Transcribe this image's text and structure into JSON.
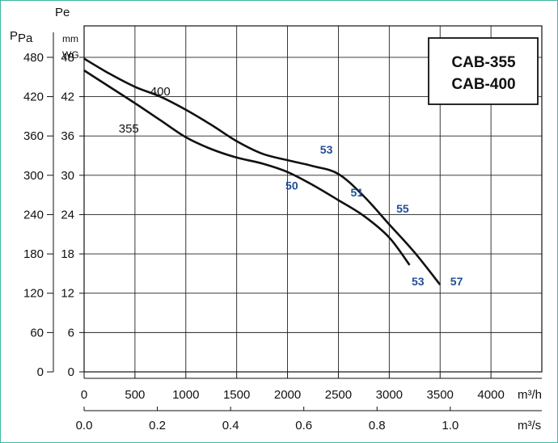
{
  "chart_data": {
    "type": "line",
    "y_axis_left": {
      "label": "Pa",
      "label_prefix": "P",
      "ticks": [
        0,
        60,
        120,
        180,
        240,
        300,
        360,
        420,
        480
      ],
      "range": [
        0,
        528
      ]
    },
    "y_axis_right": {
      "label": "Pe",
      "unit_line1": "mm",
      "unit_line2": "WG",
      "ticks": [
        0,
        6,
        12,
        18,
        24,
        30,
        36,
        42,
        48
      ]
    },
    "x_axis_primary": {
      "ticks": [
        0,
        500,
        1000,
        1500,
        2000,
        2500,
        3000,
        3500,
        4000
      ],
      "unit": "m³/h",
      "range": [
        0,
        4500
      ]
    },
    "x_axis_secondary": {
      "ticks": [
        "0.0",
        "0.2",
        "0.4",
        "0.6",
        "0.8",
        "1.0"
      ],
      "tick_values": [
        0,
        0.2,
        0.4,
        0.6,
        0.8,
        1.0
      ],
      "unit": "m³/s"
    },
    "legend": [
      "CAB-355",
      "CAB-400"
    ],
    "legend_position": "top-right",
    "grid": true,
    "series": [
      {
        "name": "355",
        "x": [
          0,
          250,
          500,
          750,
          1000,
          1250,
          1500,
          1750,
          2000,
          2250,
          2500,
          2750,
          3000,
          3200
        ],
        "y": [
          460,
          435,
          410,
          384,
          358,
          340,
          327,
          318,
          305,
          285,
          262,
          238,
          205,
          163
        ]
      },
      {
        "name": "400",
        "x": [
          0,
          250,
          500,
          750,
          1000,
          1250,
          1500,
          1750,
          2000,
          2250,
          2500,
          2750,
          3000,
          3250,
          3500
        ],
        "y": [
          478,
          455,
          435,
          420,
          400,
          377,
          352,
          333,
          323,
          314,
          302,
          268,
          225,
          182,
          133
        ]
      }
    ],
    "annotations": [
      {
        "text": "400",
        "x": 650,
        "y": 422,
        "style": "dark"
      },
      {
        "text": "355",
        "x": 340,
        "y": 365,
        "style": "dark"
      },
      {
        "text": "53",
        "x": 2320,
        "y": 333,
        "style": "blue"
      },
      {
        "text": "50",
        "x": 1980,
        "y": 278,
        "style": "blue"
      },
      {
        "text": "51",
        "x": 2620,
        "y": 268,
        "style": "blue"
      },
      {
        "text": "55",
        "x": 3070,
        "y": 243,
        "style": "blue"
      },
      {
        "text": "53",
        "x": 3220,
        "y": 132,
        "style": "blue"
      },
      {
        "text": "57",
        "x": 3600,
        "y": 132,
        "style": "blue"
      }
    ]
  }
}
